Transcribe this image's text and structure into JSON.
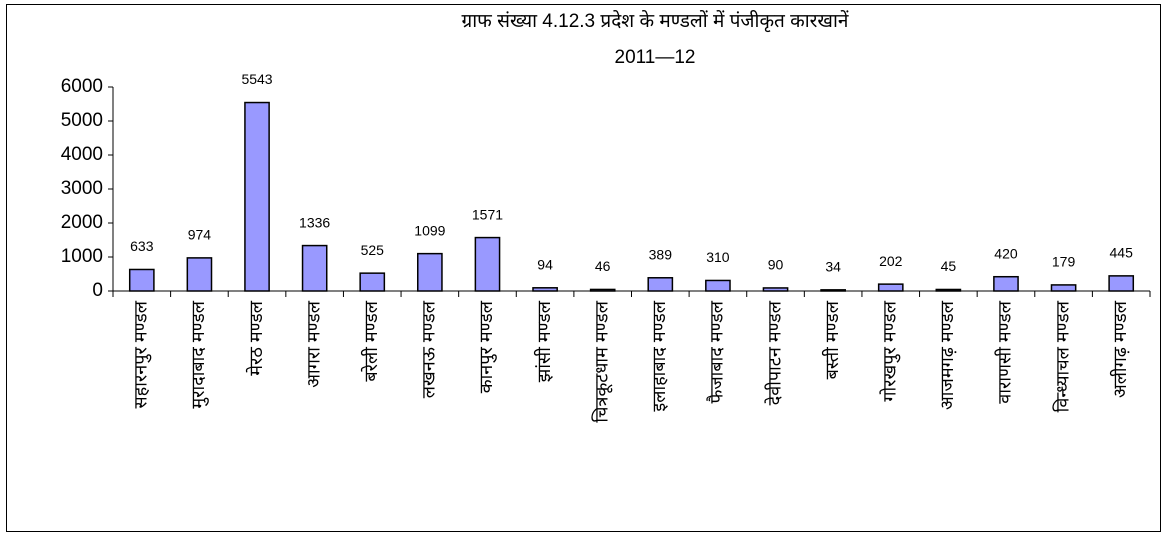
{
  "chart_data": {
    "type": "bar",
    "title": "ग्राफ संख्या  4.12.3 प्रदेश के मण्डलों में पंजीकृत कारखानें",
    "subtitle": "2011—12",
    "categories": [
      "सहारनपुर मण्डल",
      "मुरादाबाद मण्डल",
      "मेरठ मण्डल",
      "आगरा मण्डल",
      "बरेली मण्डल",
      "लखनऊ मण्डल",
      "कानपुर मण्डल",
      "झांसी मण्डल",
      "चित्रकूटधाम मण्डल",
      "इलाहाबाद मण्डल",
      "फैजाबाद मण्डल",
      "देवीपाटन मण्डल",
      "बस्ती मण्डल",
      "गोरखपुर मण्डल",
      "आजमगढ़ मण्डल",
      "वाराणसी मण्डल",
      "विन्ध्याचल मण्डल",
      "अलीगढ़ मण्डल"
    ],
    "values": [
      633,
      974,
      5543,
      1336,
      525,
      1099,
      1571,
      94,
      46,
      389,
      310,
      90,
      34,
      202,
      45,
      420,
      179,
      445
    ],
    "color": "#9999ff",
    "ylim": [
      0,
      6000
    ],
    "yticks": [
      0,
      1000,
      2000,
      3000,
      4000,
      5000,
      6000
    ],
    "grid": false
  }
}
